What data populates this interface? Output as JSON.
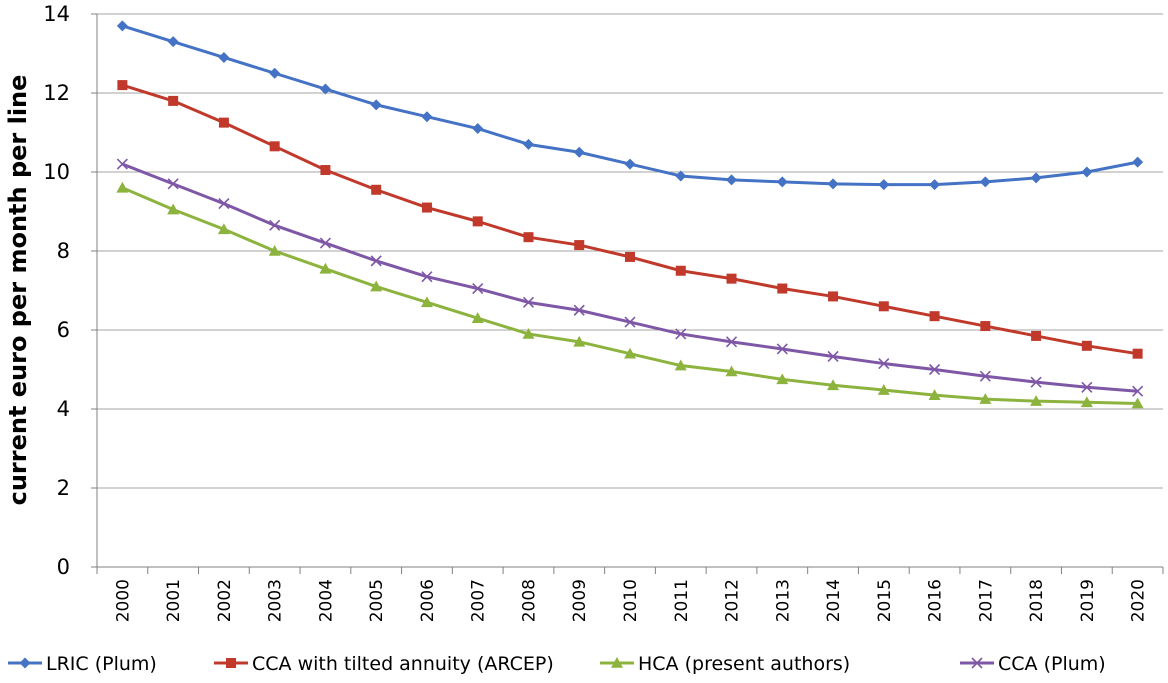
{
  "chart_data": {
    "type": "line",
    "title": "",
    "xlabel": "",
    "ylabel": "current euro per month per line",
    "ylim": [
      0,
      14
    ],
    "yticks": [
      0,
      2,
      4,
      6,
      8,
      10,
      12,
      14
    ],
    "grid": "horizontal",
    "legend_position": "bottom",
    "categories": [
      "2000",
      "2001",
      "2002",
      "2003",
      "2004",
      "2005",
      "2006",
      "2007",
      "2008",
      "2009",
      "2010",
      "2011",
      "2012",
      "2013",
      "2014",
      "2015",
      "2016",
      "2017",
      "2018",
      "2019",
      "2020"
    ],
    "series": [
      {
        "name": "LRIC (Plum)",
        "color": "#4472C4",
        "marker": "diamond",
        "values": [
          13.7,
          13.3,
          12.9,
          12.5,
          12.1,
          11.7,
          11.4,
          11.1,
          10.7,
          10.5,
          10.2,
          9.9,
          9.8,
          9.75,
          9.7,
          9.68,
          9.68,
          9.75,
          9.85,
          10.0,
          10.25
        ]
      },
      {
        "name": "CCA with tilted annuity (ARCEP)",
        "color": "#C0392B",
        "marker": "square",
        "values": [
          12.2,
          11.8,
          11.25,
          10.65,
          10.05,
          9.55,
          9.1,
          8.75,
          8.35,
          8.15,
          7.85,
          7.5,
          7.3,
          7.05,
          6.85,
          6.6,
          6.35,
          6.1,
          5.85,
          5.6,
          5.4
        ]
      },
      {
        "name": "HCA (present authors)",
        "color": "#8DB33F",
        "marker": "triangle",
        "values": [
          9.6,
          9.05,
          8.55,
          8.0,
          7.55,
          7.1,
          6.7,
          6.3,
          5.9,
          5.7,
          5.4,
          5.1,
          4.95,
          4.75,
          4.6,
          4.48,
          4.35,
          4.25,
          4.2,
          4.17,
          4.14
        ]
      },
      {
        "name": "CCA (Plum)",
        "color": "#7E57A6",
        "marker": "x",
        "values": [
          10.2,
          9.7,
          9.2,
          8.65,
          8.2,
          7.75,
          7.35,
          7.05,
          6.7,
          6.5,
          6.2,
          5.9,
          5.7,
          5.52,
          5.33,
          5.15,
          5.0,
          4.83,
          4.68,
          4.55,
          4.45
        ]
      }
    ]
  }
}
